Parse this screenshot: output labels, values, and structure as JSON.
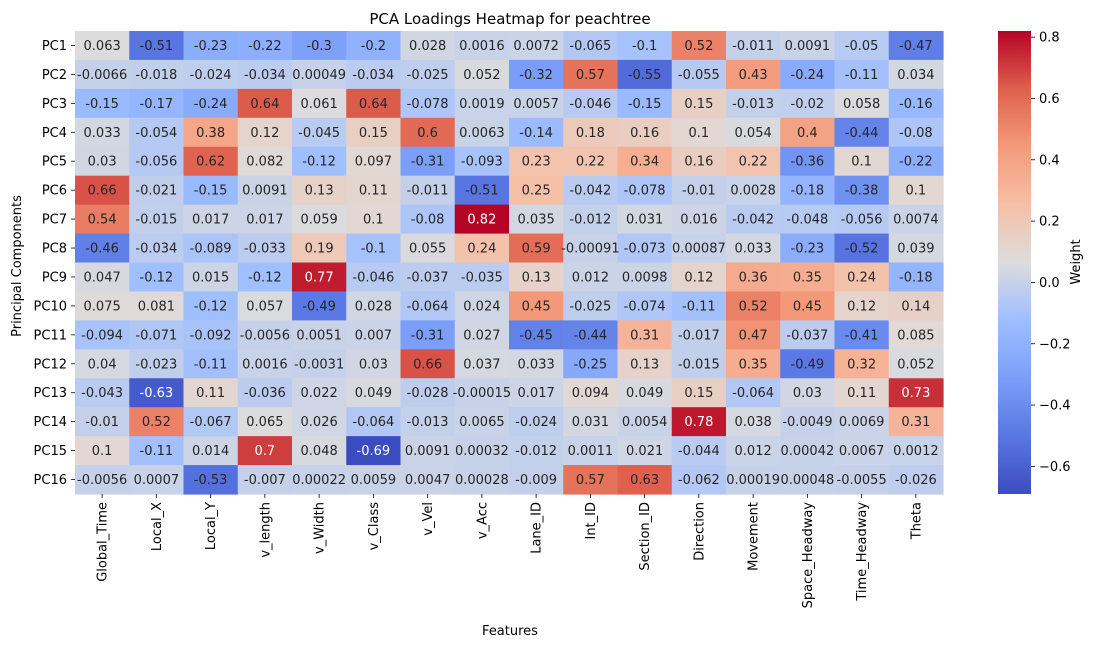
{
  "chart_data": {
    "type": "heatmap",
    "title": "PCA Loadings Heatmap for peachtree",
    "xlabel": "Features",
    "ylabel": "Principal Components",
    "colorbar_label": "Weight",
    "colormap": "coolwarm",
    "vmin": -0.69,
    "vmax": 0.82,
    "colorbar_ticks": [
      -0.6,
      -0.4,
      -0.2,
      0.0,
      0.2,
      0.4,
      0.6,
      0.8
    ],
    "colorbar_tick_labels": [
      "−0.6",
      "−0.4",
      "−0.2",
      "0.0",
      "0.2",
      "0.4",
      "0.6",
      "0.8"
    ],
    "x_categories": [
      "Global_Time",
      "Local_X",
      "Local_Y",
      "v_length",
      "v_Width",
      "v_Class",
      "v_Vel",
      "v_Acc",
      "Lane_ID",
      "Int_ID",
      "Section_ID",
      "Direction",
      "Movement",
      "Space_Headway",
      "Time_Headway",
      "Theta"
    ],
    "y_categories": [
      "PC1",
      "PC2",
      "PC3",
      "PC4",
      "PC5",
      "PC6",
      "PC7",
      "PC8",
      "PC9",
      "PC10",
      "PC11",
      "PC12",
      "PC13",
      "PC14",
      "PC15",
      "PC16"
    ],
    "values": [
      [
        0.063,
        -0.51,
        -0.23,
        -0.22,
        -0.3,
        -0.2,
        0.028,
        0.0016,
        0.0072,
        -0.065,
        -0.1,
        0.52,
        -0.011,
        0.0091,
        -0.05,
        -0.47
      ],
      [
        -0.0066,
        -0.018,
        -0.024,
        -0.034,
        0.00049,
        -0.034,
        -0.025,
        0.052,
        -0.32,
        0.57,
        -0.55,
        -0.055,
        0.43,
        -0.24,
        -0.11,
        0.034
      ],
      [
        -0.15,
        -0.17,
        -0.24,
        0.64,
        0.061,
        0.64,
        -0.078,
        0.0019,
        0.0057,
        -0.046,
        -0.15,
        0.15,
        -0.013,
        -0.02,
        0.058,
        -0.16
      ],
      [
        0.033,
        -0.054,
        0.38,
        0.12,
        -0.045,
        0.15,
        0.6,
        0.0063,
        -0.14,
        0.18,
        0.16,
        0.1,
        0.054,
        0.4,
        -0.44,
        -0.08
      ],
      [
        0.03,
        -0.056,
        0.62,
        0.082,
        -0.12,
        0.097,
        -0.31,
        -0.093,
        0.23,
        0.22,
        0.34,
        0.16,
        0.22,
        -0.36,
        0.1,
        -0.22
      ],
      [
        0.66,
        -0.021,
        -0.15,
        0.0091,
        0.13,
        0.11,
        -0.011,
        -0.51,
        0.25,
        -0.042,
        -0.078,
        -0.01,
        0.0028,
        -0.18,
        -0.38,
        0.1
      ],
      [
        0.54,
        -0.015,
        0.017,
        0.017,
        0.059,
        0.1,
        -0.08,
        0.82,
        0.035,
        -0.012,
        0.031,
        0.016,
        -0.042,
        -0.048,
        -0.056,
        0.0074
      ],
      [
        -0.46,
        -0.034,
        -0.089,
        -0.033,
        0.19,
        -0.1,
        0.055,
        0.24,
        0.59,
        -0.00091,
        -0.073,
        0.00087,
        0.033,
        -0.23,
        -0.52,
        0.039
      ],
      [
        0.047,
        -0.12,
        0.015,
        -0.12,
        0.77,
        -0.046,
        -0.037,
        -0.035,
        0.13,
        0.012,
        0.0098,
        0.12,
        0.36,
        0.35,
        0.24,
        -0.18
      ],
      [
        0.075,
        0.081,
        -0.12,
        0.057,
        -0.49,
        0.028,
        -0.064,
        0.024,
        0.45,
        -0.025,
        -0.074,
        -0.11,
        0.52,
        0.45,
        0.12,
        0.14
      ],
      [
        -0.094,
        -0.071,
        -0.092,
        -0.0056,
        0.0051,
        0.007,
        -0.31,
        0.027,
        -0.45,
        -0.44,
        0.31,
        -0.017,
        0.47,
        -0.037,
        -0.41,
        0.085
      ],
      [
        0.04,
        -0.023,
        -0.11,
        0.0016,
        -0.0031,
        0.03,
        0.66,
        0.037,
        0.033,
        -0.25,
        0.13,
        -0.015,
        0.35,
        -0.49,
        0.32,
        0.052
      ],
      [
        -0.043,
        -0.63,
        0.11,
        -0.036,
        0.022,
        0.049,
        -0.028,
        -0.00015,
        0.017,
        0.094,
        0.049,
        0.15,
        -0.064,
        0.03,
        0.11,
        0.73
      ],
      [
        -0.01,
        0.52,
        -0.067,
        0.065,
        0.026,
        -0.064,
        -0.013,
        0.0065,
        -0.024,
        0.031,
        0.0054,
        0.78,
        0.038,
        -0.0049,
        0.0069,
        0.31
      ],
      [
        0.1,
        -0.11,
        0.014,
        0.7,
        0.048,
        -0.69,
        0.0091,
        0.00032,
        -0.012,
        0.0011,
        0.021,
        -0.044,
        0.012,
        0.00042,
        0.0067,
        0.0012
      ],
      [
        -0.0056,
        0.0007,
        -0.53,
        -0.007,
        0.00022,
        0.0059,
        0.0047,
        0.00028,
        -0.009,
        0.57,
        0.63,
        -0.062,
        0.00019,
        0.00048,
        -0.0055,
        -0.026
      ]
    ],
    "cell_labels": [
      [
        "0.063",
        "-0.51",
        "-0.23",
        "-0.22",
        "-0.3",
        "-0.2",
        "0.028",
        "0.0016",
        "0.0072",
        "-0.065",
        "-0.1",
        "0.52",
        "-0.011",
        "0.0091",
        "-0.05",
        "-0.47"
      ],
      [
        "-0.0066",
        "-0.018",
        "-0.024",
        "-0.034",
        "0.00049",
        "-0.034",
        "-0.025",
        "0.052",
        "-0.32",
        "0.57",
        "-0.55",
        "-0.055",
        "0.43",
        "-0.24",
        "-0.11",
        "0.034"
      ],
      [
        "-0.15",
        "-0.17",
        "-0.24",
        "0.64",
        "0.061",
        "0.64",
        "-0.078",
        "0.0019",
        "0.0057",
        "-0.046",
        "-0.15",
        "0.15",
        "-0.013",
        "-0.02",
        "0.058",
        "-0.16"
      ],
      [
        "0.033",
        "-0.054",
        "0.38",
        "0.12",
        "-0.045",
        "0.15",
        "0.6",
        "0.0063",
        "-0.14",
        "0.18",
        "0.16",
        "0.1",
        "0.054",
        "0.4",
        "-0.44",
        "-0.08"
      ],
      [
        "0.03",
        "-0.056",
        "0.62",
        "0.082",
        "-0.12",
        "0.097",
        "-0.31",
        "-0.093",
        "0.23",
        "0.22",
        "0.34",
        "0.16",
        "0.22",
        "-0.36",
        "0.1",
        "-0.22"
      ],
      [
        "0.66",
        "-0.021",
        "-0.15",
        "0.0091",
        "0.13",
        "0.11",
        "-0.011",
        "-0.51",
        "0.25",
        "-0.042",
        "-0.078",
        "-0.01",
        "0.0028",
        "-0.18",
        "-0.38",
        "0.1"
      ],
      [
        "0.54",
        "-0.015",
        "0.017",
        "0.017",
        "0.059",
        "0.1",
        "-0.08",
        "0.82",
        "0.035",
        "-0.012",
        "0.031",
        "0.016",
        "-0.042",
        "-0.048",
        "-0.056",
        "0.0074"
      ],
      [
        "-0.46",
        "-0.034",
        "-0.089",
        "-0.033",
        "0.19",
        "-0.1",
        "0.055",
        "0.24",
        "0.59",
        "-0.00091",
        "-0.073",
        "0.00087",
        "0.033",
        "-0.23",
        "-0.52",
        "0.039"
      ],
      [
        "0.047",
        "-0.12",
        "0.015",
        "-0.12",
        "0.77",
        "-0.046",
        "-0.037",
        "-0.035",
        "0.13",
        "0.012",
        "0.0098",
        "0.12",
        "0.36",
        "0.35",
        "0.24",
        "-0.18"
      ],
      [
        "0.075",
        "0.081",
        "-0.12",
        "0.057",
        "-0.49",
        "0.028",
        "-0.064",
        "0.024",
        "0.45",
        "-0.025",
        "-0.074",
        "-0.11",
        "0.52",
        "0.45",
        "0.12",
        "0.14"
      ],
      [
        "-0.094",
        "-0.071",
        "-0.092",
        "-0.0056",
        "0.0051",
        "0.007",
        "-0.31",
        "0.027",
        "-0.45",
        "-0.44",
        "0.31",
        "-0.017",
        "0.47",
        "-0.037",
        "-0.41",
        "0.085"
      ],
      [
        "0.04",
        "-0.023",
        "-0.11",
        "0.0016",
        "-0.0031",
        "0.03",
        "0.66",
        "0.037",
        "0.033",
        "-0.25",
        "0.13",
        "-0.015",
        "0.35",
        "-0.49",
        "0.32",
        "0.052"
      ],
      [
        "-0.043",
        "-0.63",
        "0.11",
        "-0.036",
        "0.022",
        "0.049",
        "-0.028",
        "-0.00015",
        "0.017",
        "0.094",
        "0.049",
        "0.15",
        "-0.064",
        "0.03",
        "0.11",
        "0.73"
      ],
      [
        "-0.01",
        "0.52",
        "-0.067",
        "0.065",
        "0.026",
        "-0.064",
        "-0.013",
        "0.0065",
        "-0.024",
        "0.031",
        "0.0054",
        "0.78",
        "0.038",
        "-0.0049",
        "0.0069",
        "0.31"
      ],
      [
        "0.1",
        "-0.11",
        "0.014",
        "0.7",
        "0.048",
        "-0.69",
        "0.0091",
        "0.00032",
        "-0.012",
        "0.0011",
        "0.021",
        "-0.044",
        "0.012",
        "0.00042",
        "0.0067",
        "0.0012"
      ],
      [
        "-0.0056",
        "0.0007",
        "-0.53",
        "-0.007",
        "0.00022",
        "0.0059",
        "0.0047",
        "0.00028",
        "-0.009",
        "0.57",
        "0.63",
        "-0.062",
        "0.00019",
        "0.00048",
        "-0.0055",
        "-0.026"
      ]
    ]
  }
}
